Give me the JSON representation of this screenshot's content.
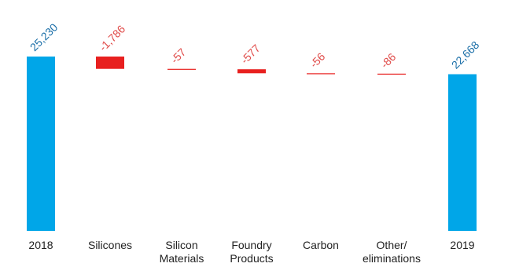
{
  "chart_data": {
    "type": "bar",
    "subtype": "waterfall",
    "title": "",
    "xlabel": "",
    "ylabel": "",
    "ylim": [
      0,
      26000
    ],
    "grid": false,
    "legend": "none",
    "categories": [
      "2018",
      "Silicones",
      "Silicon Materials",
      "Foundry Products",
      "Carbon",
      "Other/ eliminations",
      "2019"
    ],
    "category_lines": [
      [
        "2018"
      ],
      [
        "Silicones"
      ],
      [
        "Silicon",
        "Materials"
      ],
      [
        "Foundry",
        "Products"
      ],
      [
        "Carbon"
      ],
      [
        "Other/",
        "eliminations"
      ],
      [
        "2019"
      ]
    ],
    "values": [
      25230,
      -1786,
      -57,
      -577,
      -56,
      -86,
      22668
    ],
    "value_labels": [
      "25,230",
      "-1,786",
      "-57",
      "-577",
      "-56",
      "-86",
      "22,668"
    ],
    "bar_kinds": [
      "total",
      "delta",
      "delta",
      "delta",
      "delta",
      "delta",
      "total"
    ],
    "colors": {
      "total": "#00a6e8",
      "negative_bar": "#e8201f",
      "total_label": "#1b6fa8",
      "negative_label": "#e04a48"
    }
  }
}
